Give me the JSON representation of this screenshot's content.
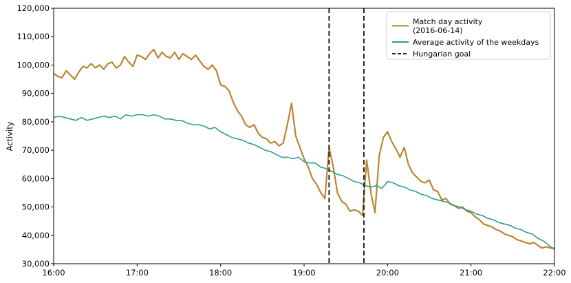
{
  "chart_data": {
    "type": "line",
    "title": "",
    "xlabel": "",
    "ylabel": "Activity",
    "x_ticks": [
      "16:00",
      "17:00",
      "18:00",
      "19:00",
      "20:00",
      "21:00",
      "22:00"
    ],
    "y_ticks": [
      "30,000",
      "40,000",
      "50,000",
      "60,000",
      "70,000",
      "80,000",
      "90,000",
      "100,000",
      "110,000",
      "120,000"
    ],
    "xlim": [
      "16:00",
      "22:00"
    ],
    "ylim": [
      30000,
      120000
    ],
    "grid": false,
    "legend_position": "top-right",
    "series": [
      {
        "name": "Match day activity\n(2016-06-14)",
        "color": "#bb8433",
        "style": "solid",
        "points": [
          [
            "16:00",
            97000
          ],
          [
            "16:03",
            96000
          ],
          [
            "16:06",
            95500
          ],
          [
            "16:09",
            98000
          ],
          [
            "16:12",
            96500
          ],
          [
            "16:15",
            95000
          ],
          [
            "16:18",
            97500
          ],
          [
            "16:21",
            99500
          ],
          [
            "16:24",
            99000
          ],
          [
            "16:27",
            100500
          ],
          [
            "16:30",
            99000
          ],
          [
            "16:33",
            100000
          ],
          [
            "16:36",
            98500
          ],
          [
            "16:39",
            100500
          ],
          [
            "16:42",
            101000
          ],
          [
            "16:45",
            99000
          ],
          [
            "16:48",
            100000
          ],
          [
            "16:51",
            103000
          ],
          [
            "16:54",
            101000
          ],
          [
            "16:57",
            99500
          ],
          [
            "17:00",
            103500
          ],
          [
            "17:03",
            103000
          ],
          [
            "17:06",
            102000
          ],
          [
            "17:09",
            104000
          ],
          [
            "17:12",
            105500
          ],
          [
            "17:15",
            102500
          ],
          [
            "17:18",
            104500
          ],
          [
            "17:21",
            103000
          ],
          [
            "17:24",
            102500
          ],
          [
            "17:27",
            104500
          ],
          [
            "17:30",
            102000
          ],
          [
            "17:33",
            104000
          ],
          [
            "17:36",
            103000
          ],
          [
            "17:39",
            102000
          ],
          [
            "17:42",
            103500
          ],
          [
            "17:45",
            101500
          ],
          [
            "17:48",
            99500
          ],
          [
            "17:51",
            98500
          ],
          [
            "17:54",
            100000
          ],
          [
            "17:57",
            98000
          ],
          [
            "18:00",
            93000
          ],
          [
            "18:03",
            92500
          ],
          [
            "18:06",
            91000
          ],
          [
            "18:09",
            87000
          ],
          [
            "18:12",
            84000
          ],
          [
            "18:15",
            82000
          ],
          [
            "18:18",
            79000
          ],
          [
            "18:21",
            78000
          ],
          [
            "18:24",
            79000
          ],
          [
            "18:27",
            76000
          ],
          [
            "18:30",
            74500
          ],
          [
            "18:33",
            74000
          ],
          [
            "18:36",
            72500
          ],
          [
            "18:39",
            73000
          ],
          [
            "18:42",
            71500
          ],
          [
            "18:45",
            72500
          ],
          [
            "18:48",
            79000
          ],
          [
            "18:51",
            86500
          ],
          [
            "18:54",
            75000
          ],
          [
            "18:57",
            71000
          ],
          [
            "19:00",
            67000
          ],
          [
            "19:03",
            64000
          ],
          [
            "19:06",
            60000
          ],
          [
            "19:09",
            58000
          ],
          [
            "19:12",
            55000
          ],
          [
            "19:15",
            53000
          ],
          [
            "19:18",
            71000
          ],
          [
            "19:21",
            64000
          ],
          [
            "19:24",
            55000
          ],
          [
            "19:27",
            52000
          ],
          [
            "19:30",
            51000
          ],
          [
            "19:33",
            48500
          ],
          [
            "19:36",
            49000
          ],
          [
            "19:39",
            48500
          ],
          [
            "19:42",
            47000
          ],
          [
            "19:45",
            66500
          ],
          [
            "19:48",
            55000
          ],
          [
            "19:51",
            48000
          ],
          [
            "19:54",
            68000
          ],
          [
            "19:57",
            74500
          ],
          [
            "20:00",
            76500
          ],
          [
            "20:03",
            73000
          ],
          [
            "20:06",
            70500
          ],
          [
            "20:09",
            67500
          ],
          [
            "20:12",
            71000
          ],
          [
            "20:15",
            65000
          ],
          [
            "20:18",
            62000
          ],
          [
            "20:21",
            60500
          ],
          [
            "20:24",
            59000
          ],
          [
            "20:27",
            58500
          ],
          [
            "20:30",
            59500
          ],
          [
            "20:33",
            56000
          ],
          [
            "20:36",
            55500
          ],
          [
            "20:39",
            52500
          ],
          [
            "20:42",
            53000
          ],
          [
            "20:45",
            51000
          ],
          [
            "20:48",
            50500
          ],
          [
            "20:51",
            49500
          ],
          [
            "20:54",
            50000
          ],
          [
            "20:57",
            48500
          ],
          [
            "21:00",
            48000
          ],
          [
            "21:03",
            46500
          ],
          [
            "21:06",
            45500
          ],
          [
            "21:09",
            44000
          ],
          [
            "21:12",
            43500
          ],
          [
            "21:15",
            43000
          ],
          [
            "21:18",
            42000
          ],
          [
            "21:21",
            41500
          ],
          [
            "21:24",
            40500
          ],
          [
            "21:27",
            40000
          ],
          [
            "21:30",
            39500
          ],
          [
            "21:33",
            38500
          ],
          [
            "21:36",
            38000
          ],
          [
            "21:39",
            37500
          ],
          [
            "21:42",
            37000
          ],
          [
            "21:45",
            37500
          ],
          [
            "21:48",
            36500
          ],
          [
            "21:51",
            35500
          ],
          [
            "21:54",
            36000
          ],
          [
            "21:57",
            35500
          ],
          [
            "22:00",
            35500
          ]
        ]
      },
      {
        "name": "Average activity of the weekdays",
        "color": "#2f9b92",
        "style": "solid",
        "points": [
          [
            "16:00",
            81500
          ],
          [
            "16:04",
            82000
          ],
          [
            "16:08",
            81500
          ],
          [
            "16:12",
            81000
          ],
          [
            "16:16",
            80500
          ],
          [
            "16:20",
            81500
          ],
          [
            "16:24",
            80500
          ],
          [
            "16:28",
            81000
          ],
          [
            "16:32",
            81500
          ],
          [
            "16:36",
            82000
          ],
          [
            "16:40",
            81500
          ],
          [
            "16:44",
            82000
          ],
          [
            "16:48",
            81000
          ],
          [
            "16:52",
            82500
          ],
          [
            "16:56",
            82000
          ],
          [
            "17:00",
            82500
          ],
          [
            "17:04",
            82500
          ],
          [
            "17:08",
            82000
          ],
          [
            "17:12",
            82500
          ],
          [
            "17:16",
            82000
          ],
          [
            "17:20",
            81000
          ],
          [
            "17:24",
            81000
          ],
          [
            "17:28",
            80500
          ],
          [
            "17:32",
            80500
          ],
          [
            "17:36",
            79500
          ],
          [
            "17:40",
            79000
          ],
          [
            "17:44",
            79000
          ],
          [
            "17:48",
            78500
          ],
          [
            "17:52",
            77500
          ],
          [
            "17:56",
            78000
          ],
          [
            "18:00",
            76500
          ],
          [
            "18:04",
            75500
          ],
          [
            "18:08",
            74500
          ],
          [
            "18:12",
            74000
          ],
          [
            "18:16",
            73500
          ],
          [
            "18:20",
            72500
          ],
          [
            "18:24",
            72000
          ],
          [
            "18:28",
            71000
          ],
          [
            "18:32",
            70000
          ],
          [
            "18:36",
            69500
          ],
          [
            "18:40",
            68500
          ],
          [
            "18:44",
            67500
          ],
          [
            "18:48",
            67500
          ],
          [
            "18:52",
            67000
          ],
          [
            "18:56",
            67500
          ],
          [
            "19:00",
            66000
          ],
          [
            "19:04",
            65500
          ],
          [
            "19:08",
            65500
          ],
          [
            "19:12",
            64000
          ],
          [
            "19:16",
            63500
          ],
          [
            "19:20",
            62500
          ],
          [
            "19:24",
            61500
          ],
          [
            "19:28",
            61000
          ],
          [
            "19:32",
            60000
          ],
          [
            "19:36",
            59000
          ],
          [
            "19:40",
            58500
          ],
          [
            "19:44",
            57500
          ],
          [
            "19:48",
            57000
          ],
          [
            "19:52",
            57500
          ],
          [
            "19:56",
            56500
          ],
          [
            "20:00",
            59000
          ],
          [
            "20:04",
            58500
          ],
          [
            "20:08",
            57500
          ],
          [
            "20:12",
            57000
          ],
          [
            "20:16",
            56000
          ],
          [
            "20:20",
            55500
          ],
          [
            "20:24",
            54500
          ],
          [
            "20:28",
            54000
          ],
          [
            "20:32",
            53000
          ],
          [
            "20:36",
            52500
          ],
          [
            "20:40",
            52000
          ],
          [
            "20:44",
            51500
          ],
          [
            "20:48",
            50500
          ],
          [
            "20:52",
            50000
          ],
          [
            "20:56",
            49000
          ],
          [
            "21:00",
            48500
          ],
          [
            "21:04",
            47500
          ],
          [
            "21:08",
            47000
          ],
          [
            "21:12",
            46000
          ],
          [
            "21:16",
            45500
          ],
          [
            "21:20",
            44500
          ],
          [
            "21:24",
            44000
          ],
          [
            "21:28",
            43500
          ],
          [
            "21:32",
            42500
          ],
          [
            "21:36",
            42000
          ],
          [
            "21:40",
            41000
          ],
          [
            "21:44",
            40500
          ],
          [
            "21:48",
            39000
          ],
          [
            "21:52",
            38000
          ],
          [
            "21:56",
            36500
          ],
          [
            "22:00",
            35000
          ]
        ]
      }
    ],
    "vlines": {
      "name": "Hungarian goal",
      "color": "#222222",
      "style": "dashed",
      "x": [
        "19:18",
        "19:43"
      ]
    }
  }
}
